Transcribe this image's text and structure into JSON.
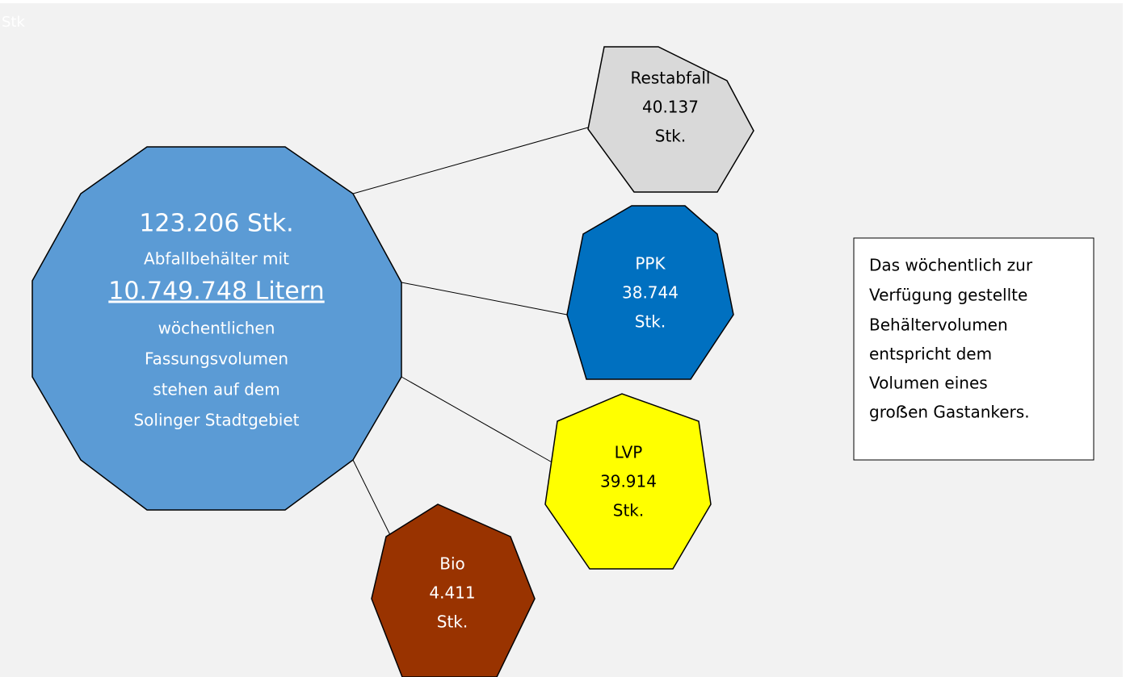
{
  "corner_label": "Stk",
  "hub": {
    "headline": "123.206 Stk.",
    "line1": "Abfallbehälter mit",
    "volume": "10.749.748 Litern",
    "lines": [
      "wöchentlichen",
      "Fassungsvolumen",
      "stehen auf dem",
      "Solinger Stadtgebiet"
    ]
  },
  "nodes": [
    {
      "label": "Restabfall",
      "count": "40.137",
      "unit": "Stk."
    },
    {
      "label": "PPK",
      "count": "38.744",
      "unit": "Stk."
    },
    {
      "label": "LVP",
      "count": "39.914",
      "unit": "Stk."
    },
    {
      "label": "Bio",
      "count": "4.411",
      "unit": "Stk."
    }
  ],
  "note": {
    "lines": [
      "Das wöchentlich zur",
      "Verfügung gestellte",
      "Behältervolumen",
      "entspricht dem",
      "Volumen eines",
      "groẞen Gastankers."
    ]
  }
}
